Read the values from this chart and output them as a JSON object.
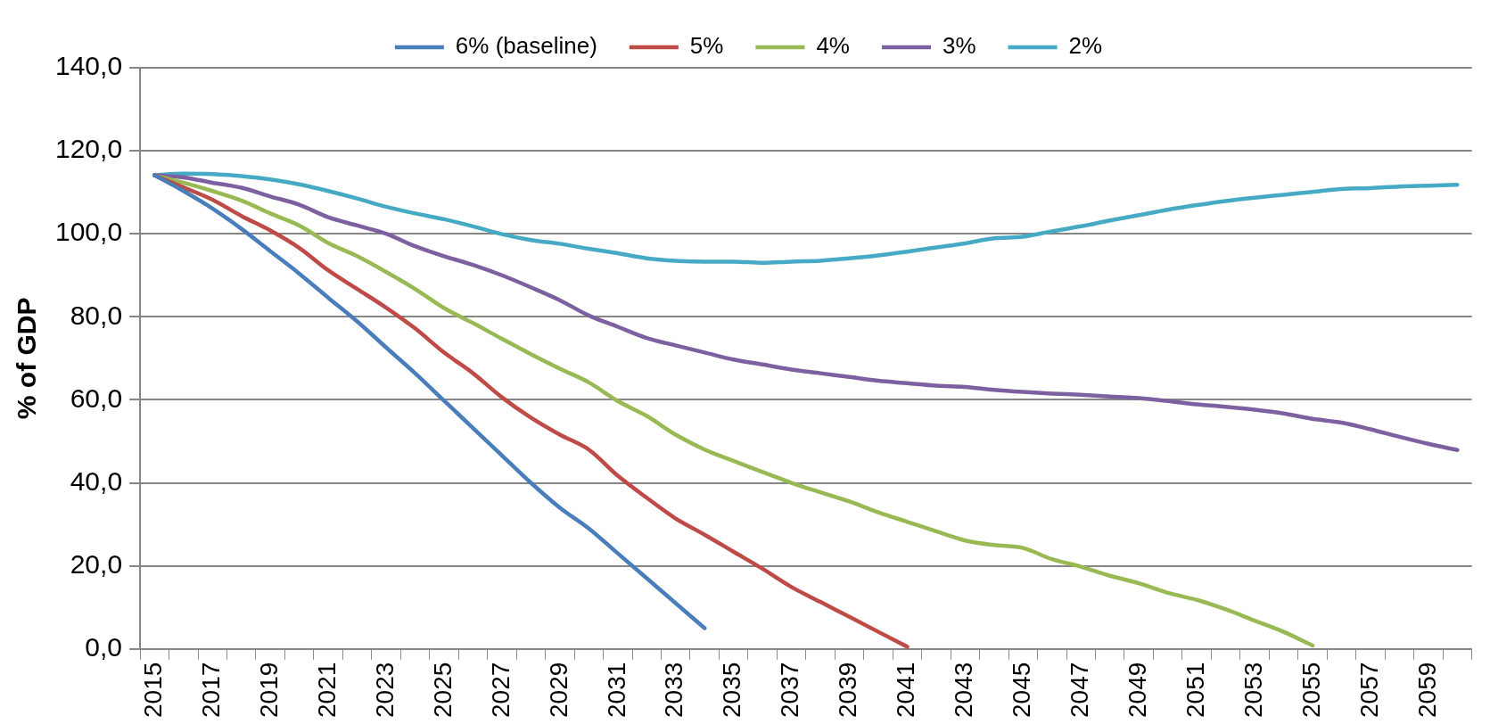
{
  "chart_data": {
    "type": "line",
    "ylabel": "% of GDP",
    "categories": [
      "2015",
      null,
      "2017",
      null,
      "2019",
      null,
      "2021",
      null,
      "2023",
      null,
      "2025",
      null,
      "2027",
      null,
      "2029",
      null,
      "2031",
      null,
      "2033",
      null,
      "2035",
      null,
      "2037",
      null,
      "2039",
      null,
      "2041",
      null,
      "2043",
      null,
      "2045",
      null,
      "2047",
      null,
      "2049",
      null,
      "2051",
      null,
      "2053",
      null,
      "2055",
      null,
      "2057",
      null,
      "2059",
      null
    ],
    "series": [
      {
        "name": "6% (baseline)",
        "color": "#4a7ebb",
        "values": [
          114.1,
          110.3,
          106.1,
          101.2,
          95.8,
          90.4,
          84.6,
          78.9,
          72.6,
          66.4,
          59.8,
          53.2,
          46.6,
          40,
          34,
          29,
          23,
          17,
          11,
          5,
          null,
          null,
          null,
          null,
          null,
          null,
          null,
          null,
          null,
          null,
          null,
          null,
          null,
          null,
          null,
          null,
          null,
          null,
          null,
          null,
          null,
          null,
          null,
          null,
          null,
          null
        ]
      },
      {
        "name": "5%",
        "color": "#be4b48",
        "values": [
          114.1,
          111.2,
          108.2,
          104.3,
          100.8,
          96.6,
          91.2,
          86.7,
          82.2,
          77.2,
          71.4,
          66.4,
          60.6,
          55.7,
          51.6,
          48,
          41.7,
          36.4,
          31.4,
          27.5,
          23.4,
          19.3,
          14.9,
          11.3,
          7.7,
          4.1,
          0.5,
          null,
          null,
          null,
          null,
          null,
          null,
          null,
          null,
          null,
          null,
          null,
          null,
          null,
          null,
          null,
          null,
          null,
          null,
          null
        ]
      },
      {
        "name": "4%",
        "color": "#98b954",
        "values": [
          114.1,
          112.3,
          110.3,
          108,
          104.9,
          102,
          97.8,
          94.6,
          90.8,
          86.7,
          82.1,
          78.5,
          74.7,
          71,
          67.5,
          64.2,
          59.7,
          56.1,
          51.6,
          48,
          45.3,
          42.6,
          40,
          37.7,
          35.5,
          32.9,
          30.6,
          28.3,
          26.1,
          25,
          24.3,
          21.6,
          19.8,
          17.6,
          15.8,
          13.5,
          11.8,
          9.5,
          6.8,
          4.1,
          0.8,
          null,
          null,
          null,
          null,
          null
        ]
      },
      {
        "name": "3%",
        "color": "#7d60a0",
        "values": [
          114.1,
          113.6,
          112.3,
          111.1,
          109,
          107,
          104,
          102,
          100,
          97,
          94.6,
          92.5,
          90,
          87.1,
          84,
          80.3,
          77.6,
          74.9,
          73.1,
          71.4,
          69.7,
          68.5,
          67.3,
          66.4,
          65.5,
          64.6,
          64,
          63.4,
          63.1,
          62.4,
          61.9,
          61.5,
          61.2,
          60.8,
          60.4,
          59.7,
          58.9,
          58.3,
          57.6,
          56.7,
          55.4,
          54.5,
          52.9,
          51.1,
          49.4,
          47.9
        ]
      },
      {
        "name": "2%",
        "color": "#46aac5",
        "values": [
          114.1,
          114.5,
          114.4,
          113.9,
          113.1,
          111.9,
          110.3,
          108.5,
          106.5,
          104.9,
          103.5,
          101.8,
          99.9,
          98.5,
          97.6,
          96.4,
          95.3,
          94.1,
          93.5,
          93.3,
          93.3,
          93,
          93.3,
          93.5,
          94.1,
          94.8,
          95.7,
          96.7,
          97.7,
          98.9,
          99.3,
          100.6,
          101.8,
          103.2,
          104.5,
          105.8,
          106.9,
          107.9,
          108.7,
          109.4,
          110.1,
          110.8,
          111,
          111.4,
          111.6,
          111.8
        ]
      }
    ],
    "ylim": [
      0,
      140
    ],
    "yticks": [
      {
        "value": 0,
        "label": "0,0"
      },
      {
        "value": 20,
        "label": "20,0"
      },
      {
        "value": 40,
        "label": "40,0"
      },
      {
        "value": 60,
        "label": "60,0"
      },
      {
        "value": 80,
        "label": "80,0"
      },
      {
        "value": 100,
        "label": "100,0"
      },
      {
        "value": 120,
        "label": "120,0"
      },
      {
        "value": 140,
        "label": "140,0"
      }
    ],
    "grid": "y",
    "legend": "top"
  }
}
